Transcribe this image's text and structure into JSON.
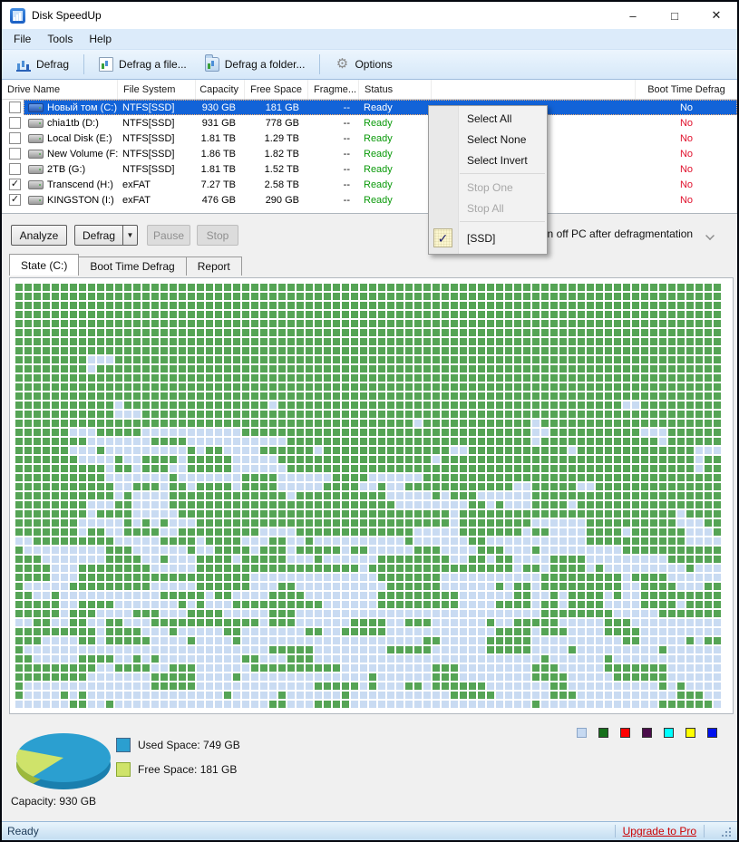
{
  "window": {
    "title": "Disk SpeedUp",
    "controls": {
      "minimize": "–",
      "maximize": "□",
      "close": "✕"
    }
  },
  "menubar": {
    "items": [
      "File",
      "Tools",
      "Help"
    ]
  },
  "toolbar": {
    "buttons": [
      {
        "label": "Defrag",
        "icon": "defrag-chart-icon"
      },
      {
        "label": "Defrag a file...",
        "icon": "file-chart-icon"
      },
      {
        "label": "Defrag a folder...",
        "icon": "folder-chart-icon"
      },
      {
        "label": "Options",
        "icon": "gear-icon"
      }
    ]
  },
  "drive_table": {
    "columns": [
      "Drive Name",
      "File System",
      "Capacity",
      "Free Space",
      "Fragme...",
      "Status",
      "Boot Time Defrag"
    ],
    "rows": [
      {
        "checked": false,
        "selected": true,
        "icon": "blue",
        "name": "Новый том (C:)",
        "fs": "NTFS[SSD]",
        "capacity": "930 GB",
        "free": "181 GB",
        "frag": "--",
        "status": "Ready",
        "boot": "No"
      },
      {
        "checked": false,
        "selected": false,
        "icon": "gray",
        "name": "chia1tb (D:)",
        "fs": "NTFS[SSD]",
        "capacity": "931 GB",
        "free": "778 GB",
        "frag": "--",
        "status": "Ready",
        "boot": "No"
      },
      {
        "checked": false,
        "selected": false,
        "icon": "gray",
        "name": "Local Disk (E:)",
        "fs": "NTFS[SSD]",
        "capacity": "1.81 TB",
        "free": "1.29 TB",
        "frag": "--",
        "status": "Ready",
        "boot": "No"
      },
      {
        "checked": false,
        "selected": false,
        "icon": "gray",
        "name": "New Volume (F:)",
        "fs": "NTFS[SSD]",
        "capacity": "1.86 TB",
        "free": "1.82 TB",
        "frag": "--",
        "status": "Ready",
        "boot": "No"
      },
      {
        "checked": false,
        "selected": false,
        "icon": "gray",
        "name": "2TB (G:)",
        "fs": "NTFS[SSD]",
        "capacity": "1.81 TB",
        "free": "1.52 TB",
        "frag": "--",
        "status": "Ready",
        "boot": "No"
      },
      {
        "checked": true,
        "selected": false,
        "icon": "gray",
        "name": "Transcend (H:)",
        "fs": "exFAT",
        "capacity": "7.27 TB",
        "free": "2.58 TB",
        "frag": "--",
        "status": "Ready",
        "boot": "No"
      },
      {
        "checked": true,
        "selected": false,
        "icon": "gray",
        "name": "KINGSTON (I:)",
        "fs": "exFAT",
        "capacity": "476 GB",
        "free": "290 GB",
        "frag": "--",
        "status": "Ready",
        "boot": "No"
      }
    ]
  },
  "context_menu": {
    "items": [
      {
        "label": "Select All",
        "enabled": true,
        "checked": false
      },
      {
        "label": "Select None",
        "enabled": true,
        "checked": false
      },
      {
        "label": "Select Invert",
        "enabled": true,
        "checked": false
      },
      {
        "type": "separator"
      },
      {
        "label": "Stop One",
        "enabled": false,
        "checked": false
      },
      {
        "label": "Stop All",
        "enabled": false,
        "checked": false
      },
      {
        "type": "separator"
      },
      {
        "label": "[SSD]",
        "enabled": true,
        "checked": true,
        "check_glyph": "✓"
      }
    ]
  },
  "actions": {
    "analyze": "Analyze",
    "defrag": "Defrag",
    "defrag_arrow": "▼",
    "pause": "Pause",
    "stop": "Stop",
    "turn_off_label": "Turn off PC after defragmentation"
  },
  "tabs": [
    {
      "label": "State (C:)",
      "active": true
    },
    {
      "label": "Boot Time Defrag",
      "active": false
    },
    {
      "label": "Report",
      "active": false
    }
  ],
  "block_map": {
    "cols": 78,
    "rows": 47,
    "used_color": "#55a455",
    "free_color": "#c9dbf2",
    "seed": 1337,
    "bands": [
      [
        0,
        0.001,
        0.2
      ],
      [
        8,
        0.008,
        0.3
      ],
      [
        13,
        0.022,
        0.45
      ],
      [
        20,
        0.045,
        0.55
      ],
      [
        26,
        0.07,
        0.65
      ],
      [
        32,
        0.12,
        0.72
      ],
      [
        39,
        0.16,
        0.78
      ]
    ],
    "vertical_cohesion": 0.25
  },
  "summary": {
    "used_label": "Used Space: 749 GB",
    "free_label": "Free Space: 181 GB",
    "capacity_label": "Capacity: 930 GB",
    "used_gb": 749,
    "free_gb": 181,
    "capacity_gb": 930,
    "used_color": "#2b9fd0",
    "used_side_color": "#1a7fae",
    "free_color": "#cfe36a",
    "free_side_color": "#9db83a"
  },
  "legend_colors": [
    "#c6d9f1",
    "#17701c",
    "#fe0000",
    "#4b0d4b",
    "#00ffff",
    "#ffff00",
    "#0011ee"
  ],
  "statusbar": {
    "left": "Ready",
    "link": "Upgrade to Pro"
  }
}
